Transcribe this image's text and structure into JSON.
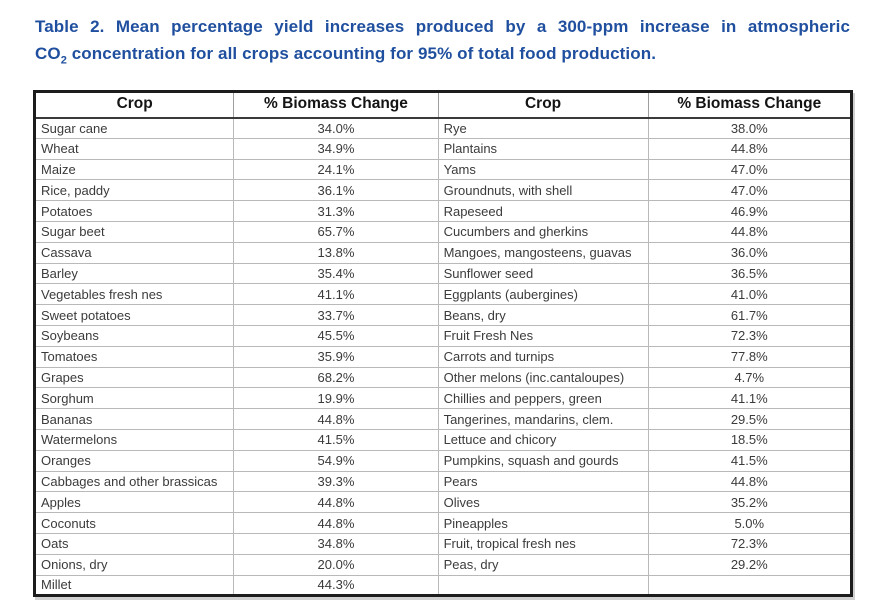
{
  "title": {
    "line1": "Table 2. Mean percentage yield increases produced by a 300-ppm increase in atmospheric",
    "line2_pre": "CO",
    "line2_sub": "2",
    "line2_rest": " concentration for all crops accounting for 95% of total food production."
  },
  "colors": {
    "title_blue": "#1f4f9e",
    "outer_border": "#1c1c1c",
    "grid_line": "#b9b9b9",
    "cell_text": "#3b3b3b"
  },
  "chart_data": {
    "type": "table",
    "title": "Table 2. Mean percentage yield increases produced by a 300-ppm increase in atmospheric CO2 concentration for all crops accounting for 95% of total food production.",
    "headers": [
      "Crop",
      "% Biomass Change",
      "Crop",
      "% Biomass Change"
    ],
    "rows": [
      [
        "Sugar cane",
        "34.0%",
        "Rye",
        "38.0%"
      ],
      [
        "Wheat",
        "34.9%",
        "Plantains",
        "44.8%"
      ],
      [
        "Maize",
        "24.1%",
        "Yams",
        "47.0%"
      ],
      [
        "Rice, paddy",
        "36.1%",
        "Groundnuts, with shell",
        "47.0%"
      ],
      [
        "Potatoes",
        "31.3%",
        "Rapeseed",
        "46.9%"
      ],
      [
        "Sugar beet",
        "65.7%",
        "Cucumbers and gherkins",
        "44.8%"
      ],
      [
        "Cassava",
        "13.8%",
        "Mangoes, mangosteens, guavas",
        "36.0%"
      ],
      [
        "Barley",
        "35.4%",
        "Sunflower seed",
        "36.5%"
      ],
      [
        "Vegetables fresh nes",
        "41.1%",
        "Eggplants (aubergines)",
        "41.0%"
      ],
      [
        "Sweet potatoes",
        "33.7%",
        "Beans, dry",
        "61.7%"
      ],
      [
        "Soybeans",
        "45.5%",
        "Fruit Fresh Nes",
        "72.3%"
      ],
      [
        "Tomatoes",
        "35.9%",
        "Carrots and turnips",
        "77.8%"
      ],
      [
        "Grapes",
        "68.2%",
        "Other melons (inc.cantaloupes)",
        "4.7%"
      ],
      [
        "Sorghum",
        "19.9%",
        "Chillies and peppers, green",
        "41.1%"
      ],
      [
        "Bananas",
        "44.8%",
        "Tangerines, mandarins, clem.",
        "29.5%"
      ],
      [
        "Watermelons",
        "41.5%",
        "Lettuce and chicory",
        "18.5%"
      ],
      [
        "Oranges",
        "54.9%",
        "Pumpkins, squash and gourds",
        "41.5%"
      ],
      [
        "Cabbages and other brassicas",
        "39.3%",
        "Pears",
        "44.8%"
      ],
      [
        "Apples",
        "44.8%",
        "Olives",
        "35.2%"
      ],
      [
        "Coconuts",
        "44.8%",
        "Pineapples",
        "5.0%"
      ],
      [
        "Oats",
        "34.8%",
        "Fruit, tropical fresh nes",
        "72.3%"
      ],
      [
        "Onions, dry",
        "20.0%",
        "Peas, dry",
        "29.2%"
      ],
      [
        "Millet",
        "44.3%",
        "",
        ""
      ]
    ]
  }
}
